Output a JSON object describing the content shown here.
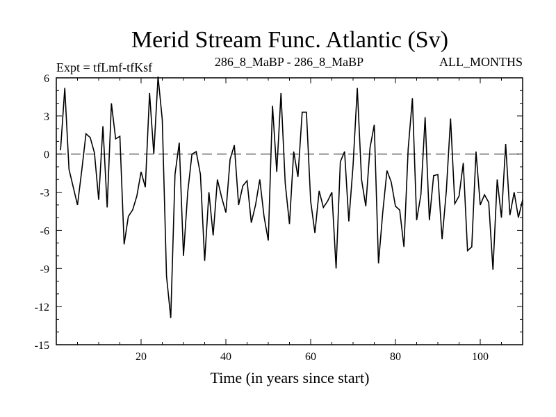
{
  "chart_data": {
    "type": "line",
    "title": "Merid Stream Func. Atlantic (Sv)",
    "subtitle_left": "Expt = tfLmf-tfKsf",
    "subtitle_center": "286_8_MaBP - 286_8_MaBP",
    "subtitle_right": "ALL_MONTHS",
    "xlabel": "Time (in years since start)",
    "ylabel": "",
    "xlim": [
      0,
      110
    ],
    "ylim": [
      -15,
      6
    ],
    "xticks": [
      20,
      40,
      60,
      80,
      100
    ],
    "yticks": [
      6,
      3,
      0,
      -3,
      -6,
      -9,
      -12,
      -15
    ],
    "reference_line": 0,
    "series": [
      {
        "name": "Merid Stream Func. Atlantic",
        "x": [
          1,
          2,
          3,
          4,
          5,
          6,
          7,
          8,
          9,
          10,
          11,
          12,
          13,
          14,
          15,
          16,
          17,
          18,
          19,
          20,
          21,
          22,
          23,
          24,
          25,
          26,
          27,
          28,
          29,
          30,
          31,
          32,
          33,
          34,
          35,
          36,
          37,
          38,
          39,
          40,
          41,
          42,
          43,
          44,
          45,
          46,
          47,
          48,
          49,
          50,
          51,
          52,
          53,
          54,
          55,
          56,
          57,
          58,
          59,
          60,
          61,
          62,
          63,
          64,
          65,
          66,
          67,
          68,
          69,
          70,
          71,
          72,
          73,
          74,
          75,
          76,
          77,
          78,
          79,
          80,
          81,
          82,
          83,
          84,
          85,
          86,
          87,
          88,
          89,
          90,
          91,
          92,
          93,
          94,
          95,
          96,
          97,
          98,
          99,
          100,
          101,
          102,
          103,
          104,
          105,
          106,
          107,
          108,
          109,
          110
        ],
        "values": [
          0.3,
          5.2,
          -1.2,
          -2.6,
          -4.0,
          -1.3,
          1.6,
          1.3,
          0.1,
          -3.6,
          2.2,
          -4.2,
          4.0,
          1.2,
          1.4,
          -7.1,
          -4.9,
          -4.4,
          -3.3,
          -1.4,
          -2.6,
          4.8,
          0.0,
          6.1,
          2.7,
          -9.6,
          -12.9,
          -1.6,
          0.9,
          -8.0,
          -3.0,
          0.0,
          0.2,
          -1.6,
          -8.4,
          -3.0,
          -6.4,
          -2.0,
          -3.4,
          -4.6,
          -0.4,
          0.7,
          -4.0,
          -2.5,
          -2.1,
          -5.4,
          -4.0,
          -2.0,
          -4.9,
          -6.8,
          3.8,
          -1.4,
          4.8,
          -2.3,
          -5.5,
          0.2,
          -1.8,
          3.3,
          3.3,
          -3.7,
          -6.2,
          -2.9,
          -4.2,
          -3.7,
          -3.0,
          -9.0,
          -0.6,
          0.2,
          -5.3,
          -0.9,
          5.2,
          -2.0,
          -4.1,
          0.5,
          2.3,
          -8.6,
          -4.6,
          -1.3,
          -2.2,
          -4.1,
          -4.4,
          -7.3,
          0.4,
          4.4,
          -5.2,
          -3.2,
          2.9,
          -5.2,
          -1.7,
          -1.6,
          -6.7,
          -2.9,
          2.8,
          -3.9,
          -3.3,
          -0.7,
          -7.6,
          -7.3,
          0.2,
          -4.0,
          -3.2,
          -3.8,
          -9.1,
          -2.0,
          -5.0,
          0.8,
          -4.8,
          -3.0,
          -5.0,
          -3.6
        ]
      }
    ]
  }
}
